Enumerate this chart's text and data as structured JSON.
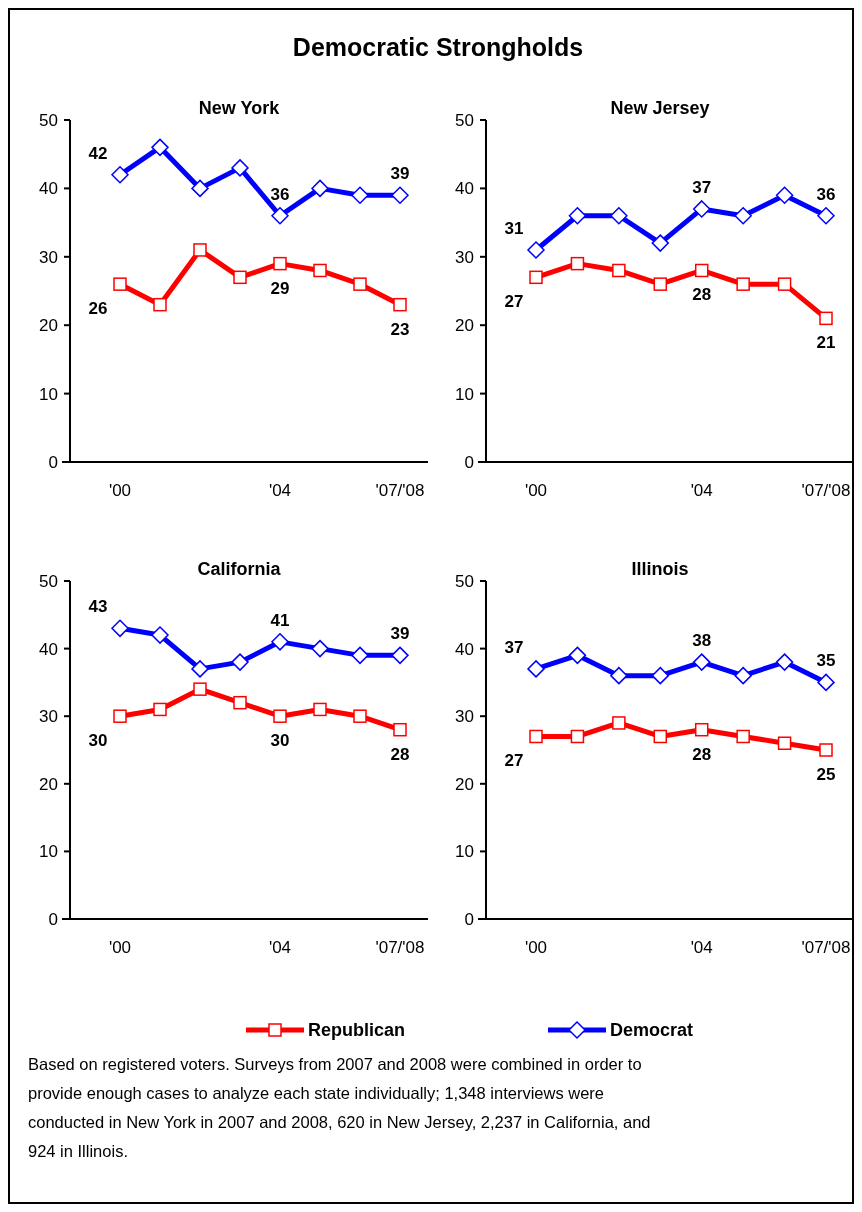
{
  "chart_data": [
    {
      "type": "other",
      "title": "Democratic Strongholds",
      "annotations": [
        "Based on registered voters. Surveys from 2007 and 2008 were combined in order to provide enough cases to analyze each state individually; 1,348 interviews were conducted in New York in 2007 and 2008, 620 in New Jersey, 2,237 in California, and 924 in Illinois."
      ]
    },
    {
      "type": "line",
      "title": "New York",
      "legend": "bottom",
      "categories": [
        "'00",
        null,
        null,
        null,
        "'04",
        null,
        null,
        "'07/'08"
      ],
      "ylim": [
        0,
        50
      ],
      "yticks": [
        0,
        10,
        20,
        30,
        40,
        50
      ],
      "series": [
        {
          "name": "Republican",
          "color": "#ff0000",
          "marker": "square",
          "values": [
            26,
            23,
            31,
            27,
            29,
            28,
            26,
            23
          ],
          "value_labels": [
            "26",
            null,
            null,
            null,
            "29",
            null,
            null,
            "23"
          ]
        },
        {
          "name": "Democrat",
          "color": "#0000ff",
          "marker": "diamond",
          "values": [
            42,
            46,
            40,
            43,
            36,
            40,
            39,
            39
          ],
          "value_labels": [
            "42",
            null,
            null,
            null,
            "36",
            null,
            null,
            "39"
          ]
        }
      ]
    },
    {
      "type": "line",
      "title": "New Jersey",
      "categories": [
        "'00",
        null,
        null,
        null,
        "'04",
        null,
        null,
        "'07/'08"
      ],
      "ylim": [
        0,
        50
      ],
      "yticks": [
        0,
        10,
        20,
        30,
        40,
        50
      ],
      "series": [
        {
          "color": "#ff0000",
          "marker": "square",
          "values": [
            27,
            29,
            28,
            26,
            28,
            26,
            26,
            21
          ],
          "value_labels": [
            "27",
            null,
            null,
            null,
            "28",
            null,
            null,
            "21"
          ]
        },
        {
          "color": "#0000ff",
          "marker": "diamond",
          "values": [
            31,
            36,
            36,
            32,
            37,
            36,
            39,
            36
          ],
          "value_labels": [
            "31",
            null,
            null,
            null,
            "37",
            null,
            null,
            "36"
          ]
        }
      ]
    },
    {
      "type": "line",
      "title": "California",
      "categories": [
        "'00",
        null,
        null,
        null,
        "'04",
        null,
        null,
        "'07/'08"
      ],
      "ylim": [
        0,
        50
      ],
      "yticks": [
        0,
        10,
        20,
        30,
        40,
        50
      ],
      "series": [
        {
          "color": "#ff0000",
          "marker": "square",
          "values": [
            30,
            31,
            34,
            32,
            30,
            31,
            30,
            28
          ],
          "value_labels": [
            "30",
            null,
            null,
            null,
            "30",
            null,
            null,
            "28"
          ]
        },
        {
          "color": "#0000ff",
          "marker": "diamond",
          "values": [
            43,
            42,
            37,
            38,
            41,
            40,
            39,
            39
          ],
          "value_labels": [
            "43",
            null,
            null,
            null,
            "41",
            null,
            null,
            "39"
          ]
        }
      ]
    },
    {
      "type": "line",
      "title": "Illinois",
      "categories": [
        "'00",
        null,
        null,
        null,
        "'04",
        null,
        null,
        "'07/'08"
      ],
      "ylim": [
        0,
        50
      ],
      "yticks": [
        0,
        10,
        20,
        30,
        40,
        50
      ],
      "series": [
        {
          "color": "#ff0000",
          "marker": "square",
          "values": [
            27,
            27,
            29,
            27,
            28,
            27,
            26,
            25
          ],
          "value_labels": [
            "27",
            null,
            null,
            null,
            "28",
            null,
            null,
            "25"
          ]
        },
        {
          "color": "#0000ff",
          "marker": "diamond",
          "values": [
            37,
            39,
            36,
            36,
            38,
            36,
            38,
            35
          ],
          "value_labels": [
            "37",
            null,
            null,
            null,
            "38",
            null,
            null,
            "35"
          ]
        }
      ]
    }
  ]
}
